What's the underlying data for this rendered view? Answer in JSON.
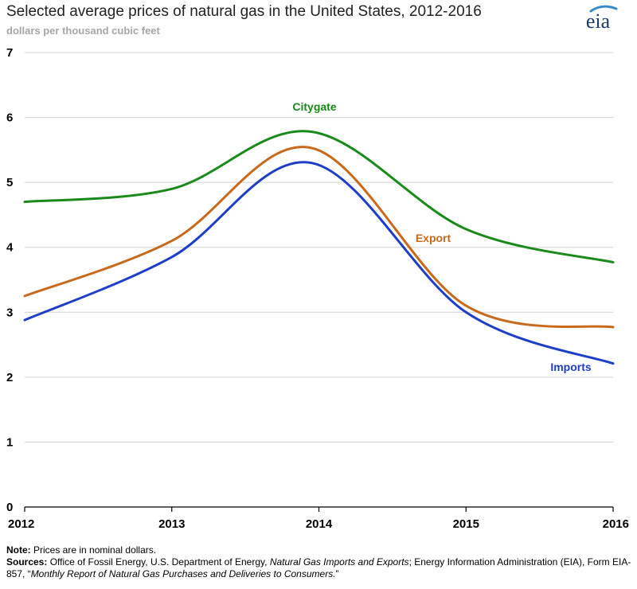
{
  "header": {
    "title": "Selected average prices of natural gas in the United States, 2012-2016",
    "subtitle": "dollars per thousand cubic feet",
    "logo_text": "eia"
  },
  "chart_data": {
    "type": "line",
    "title": "Selected average prices of natural gas in the United States, 2012-2016",
    "ylabel": "dollars per thousand cubic feet",
    "xlabel": "",
    "xlim": [
      2012,
      2016
    ],
    "ylim": [
      0,
      7
    ],
    "x_ticks": [
      "2012",
      "2013",
      "2014",
      "2015",
      "2016"
    ],
    "y_ticks": [
      "0",
      "1",
      "2",
      "3",
      "4",
      "5",
      "6",
      "7"
    ],
    "grid": true,
    "series": [
      {
        "name": "Citygate",
        "color": "#1a8a1a",
        "x": [
          2012,
          2013,
          2013.95,
          2015,
          2016
        ],
        "values": [
          4.7,
          4.9,
          5.78,
          4.28,
          3.77
        ]
      },
      {
        "name": "Export",
        "color": "#c8691c",
        "x": [
          2012,
          2013,
          2013.95,
          2015,
          2016
        ],
        "values": [
          3.25,
          4.1,
          5.53,
          3.1,
          2.77
        ]
      },
      {
        "name": "Imports",
        "color": "#1e3ec8",
        "x": [
          2012,
          2013,
          2013.95,
          2015,
          2016
        ],
        "values": [
          2.88,
          3.85,
          5.3,
          3.0,
          2.21
        ]
      }
    ]
  },
  "footer": {
    "note_label": "Note:",
    "note_text": " Prices are in nominal dollars.",
    "sources_label": "Sources:",
    "sources_text_1": " Office of Fossil Energy, U.S. Department of Energy, ",
    "sources_italic_1": "Natural Gas Imports and Exports",
    "sources_text_2": "; Energy Information Administration (EIA), Form EIA-857, “",
    "sources_italic_2": "Monthly Report of Natural Gas Purchases and Deliveries to Consumers.",
    "sources_text_3": "”"
  }
}
